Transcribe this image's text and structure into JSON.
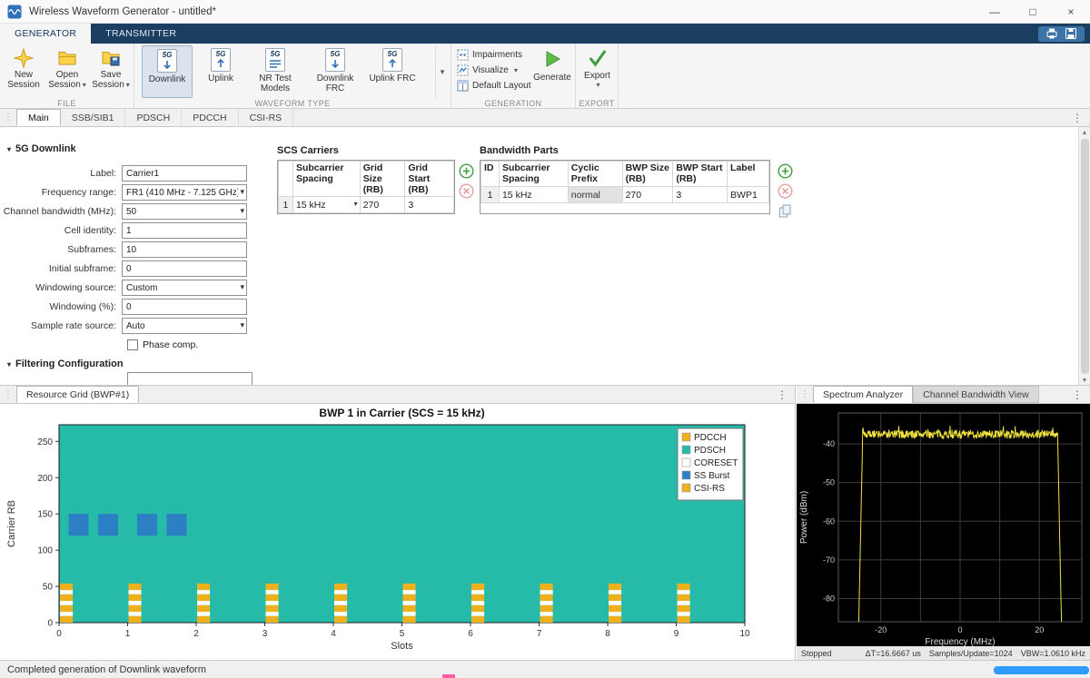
{
  "window": {
    "title": "Wireless Waveform Generator - untitled*"
  },
  "icons": {
    "minimize": "—",
    "maximize": "□",
    "close": "×",
    "caret_down": "▾",
    "overflow": "⋮",
    "grip": "⋮",
    "section_collapse": "▾",
    "scroll_up": "▲",
    "scroll_down": "▼"
  },
  "ribbon": {
    "tabs": [
      {
        "label": "GENERATOR"
      },
      {
        "label": "TRANSMITTER"
      }
    ],
    "file": {
      "label": "FILE",
      "buttons": [
        {
          "label": "New Session"
        },
        {
          "label": "Open Session"
        },
        {
          "label": "Save Session"
        }
      ]
    },
    "waveform": {
      "label": "WAVEFORM TYPE",
      "badge": "5G",
      "buttons": [
        {
          "label": "Downlink"
        },
        {
          "label": "Uplink"
        },
        {
          "label": "NR Test Models"
        },
        {
          "label": "Downlink FRC"
        },
        {
          "label": "Uplink FRC"
        }
      ]
    },
    "generation": {
      "label": "GENERATION",
      "items": [
        {
          "label": "Impairments"
        },
        {
          "label": "Visualize"
        },
        {
          "label": "Default Layout"
        }
      ],
      "generate_label": "Generate"
    },
    "export": {
      "label": "EXPORT",
      "button_label": "Export"
    }
  },
  "doc_tabs": {
    "tabs": [
      {
        "label": "Main"
      },
      {
        "label": "SSB/SIB1"
      },
      {
        "label": "PDSCH"
      },
      {
        "label": "PDCCH"
      },
      {
        "label": "CSI-RS"
      }
    ]
  },
  "config": {
    "section_title": "5G Downlink",
    "rows": [
      {
        "label": "Label:",
        "value": "Carrier1",
        "control": "text"
      },
      {
        "label": "Frequency range:",
        "value": "FR1 (410 MHz - 7.125 GHz)",
        "control": "select"
      },
      {
        "label": "Channel bandwidth (MHz):",
        "value": "50",
        "control": "select"
      },
      {
        "label": "Cell identity:",
        "value": "1",
        "control": "text"
      },
      {
        "label": "Subframes:",
        "value": "10",
        "control": "text"
      },
      {
        "label": "Initial subframe:",
        "value": "0",
        "control": "text"
      },
      {
        "label": "Windowing source:",
        "value": "Custom",
        "control": "select"
      },
      {
        "label": "Windowing (%):",
        "value": "0",
        "control": "text"
      },
      {
        "label": "Sample rate source:",
        "value": "Auto",
        "control": "select"
      }
    ],
    "phase_comp_label": "Phase comp.",
    "filtering_title": "Filtering Configuration"
  },
  "scs_carriers": {
    "title": "SCS Carriers",
    "columns": [
      "Subcarrier Spacing",
      "Grid Size (RB)",
      "Grid Start (RB)"
    ],
    "row": {
      "num": "1",
      "subcarrier_spacing": "15 kHz",
      "grid_size": "270",
      "grid_start": "3"
    }
  },
  "bandwidth_parts": {
    "title": "Bandwidth Parts",
    "columns": [
      "ID",
      "Subcarrier Spacing",
      "Cyclic Prefix",
      "BWP Size (RB)",
      "BWP Start (RB)",
      "Label"
    ],
    "row": {
      "id": "1",
      "subcarrier_spacing": "15 kHz",
      "cyclic_prefix": "normal",
      "bwp_size": "270",
      "bwp_start": "3",
      "label": "BWP1"
    }
  },
  "resource_grid_panel": {
    "tab_label": "Resource Grid (BWP#1)",
    "chart_data": {
      "type": "heatmap",
      "title": "BWP 1 in Carrier (SCS = 15 kHz)",
      "xlabel": "Slots",
      "ylabel": "Carrier RB",
      "xlim": [
        0,
        10
      ],
      "ylim": [
        0,
        273
      ],
      "xticks": [
        0,
        1,
        2,
        3,
        4,
        5,
        6,
        7,
        8,
        9,
        10
      ],
      "yticks": [
        0,
        50,
        100,
        150,
        200,
        250
      ],
      "legend": [
        {
          "label": "PDCCH",
          "color": "#EDB120"
        },
        {
          "label": "PDSCH",
          "color": "#26BBA9"
        },
        {
          "label": "CORESET",
          "color": "#FFFFFF"
        },
        {
          "label": "SS Burst",
          "color": "#2B7FC2"
        },
        {
          "label": "CSI-RS",
          "color": "#EDB120"
        }
      ],
      "background_is_pdsch": true,
      "ss_burst_blocks": {
        "rb_range": [
          120,
          150
        ],
        "slot_spans": [
          [
            0.14,
            0.43
          ],
          [
            0.57,
            0.86
          ],
          [
            1.14,
            1.43
          ],
          [
            1.57,
            1.86
          ]
        ]
      },
      "control_columns": {
        "slots": [
          0,
          1,
          2,
          3,
          4,
          5,
          6,
          7,
          8,
          9
        ],
        "slot_width": 0.2,
        "pdcch_rb_segments": [
          [
            0,
            9
          ],
          [
            15,
            24
          ],
          [
            30,
            39
          ],
          [
            45,
            54
          ]
        ],
        "coreset_rb_segments": [
          [
            9,
            15
          ],
          [
            24,
            30
          ],
          [
            39,
            45
          ]
        ]
      }
    }
  },
  "spectrum_panel": {
    "tabs": [
      {
        "label": "Spectrum Analyzer"
      },
      {
        "label": "Channel Bandwidth View"
      }
    ],
    "status_left": "Stopped",
    "status_items": [
      "ΔT=16.6667 us",
      "Samples/Update=1024",
      "VBW=1.0610 kHz"
    ],
    "chart_data": {
      "type": "line",
      "xlabel": "Frequency (MHz)",
      "ylabel": "Power (dBm)",
      "xlim": [
        -30.72,
        30.72
      ],
      "ylim": [
        -86,
        -32
      ],
      "xticks": [
        -20,
        0,
        20
      ],
      "grid_xticks": [
        -20,
        -10,
        0,
        10,
        20
      ],
      "yticks": [
        -40,
        -50,
        -60,
        -70,
        -80
      ],
      "background": "#000000",
      "trace_color": "#F1E23E",
      "passband": {
        "freq_start": -24.6,
        "freq_end": 24.6,
        "level_dbm": -37.5,
        "noise_db": 2.2
      },
      "rolloff_db_per_mhz": 50,
      "floor_dbm": -90
    }
  },
  "status_bar": {
    "message": "Completed generation of Downlink waveform"
  }
}
